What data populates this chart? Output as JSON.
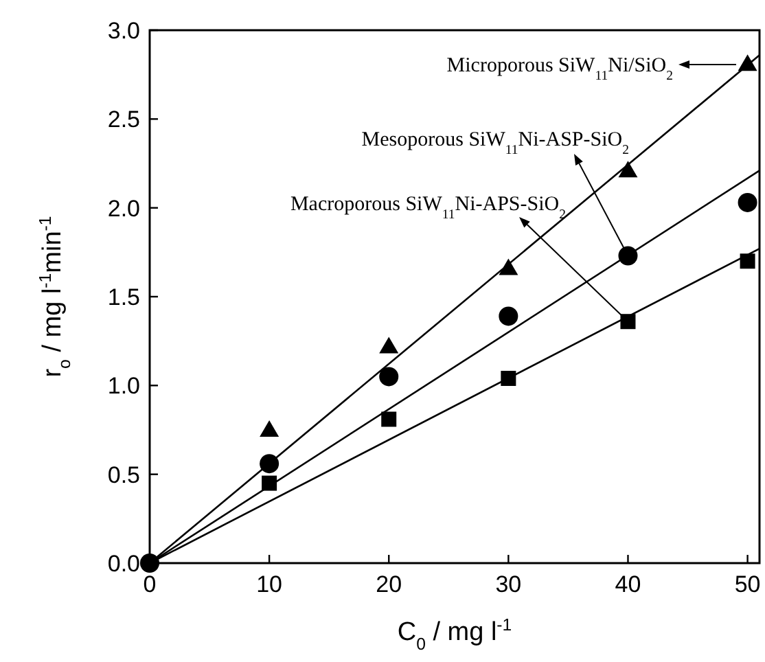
{
  "chart_data": {
    "type": "scatter",
    "xlabel": "C$_{0}$ / mg l$^{-1}$",
    "ylabel": "r$_{o}$ / mg l$^{-1}$min$^{-1}$",
    "xlim": [
      0,
      51
    ],
    "ylim": [
      0,
      3
    ],
    "xticks": [
      0,
      10,
      20,
      30,
      40,
      50
    ],
    "yticks": [
      {
        "value": 0,
        "label": "0.0"
      },
      {
        "value": 0.5,
        "label": "0.5"
      },
      {
        "value": 1,
        "label": "1.0"
      },
      {
        "value": 1.5,
        "label": "1.5"
      },
      {
        "value": 2,
        "label": "2.0"
      },
      {
        "value": 2.5,
        "label": "2.5"
      },
      {
        "value": 3,
        "label": "3.0"
      }
    ],
    "grid": false,
    "series": [
      {
        "type": "line",
        "marker": "none",
        "line_style": "solid",
        "color": "#000000",
        "x": [
          0,
          51
        ],
        "values": [
          0,
          2.86
        ]
      },
      {
        "type": "line",
        "marker": "none",
        "line_style": "solid",
        "color": "#000000",
        "x": [
          0,
          51
        ],
        "values": [
          0,
          2.21
        ]
      },
      {
        "type": "line",
        "marker": "none",
        "line_style": "solid",
        "color": "#000000",
        "x": [
          0,
          51
        ],
        "values": [
          0,
          1.77
        ]
      },
      {
        "marker": "triangle",
        "color": "#000000",
        "x": [
          10,
          20,
          30,
          40,
          50
        ],
        "values": [
          0.75,
          1.22,
          1.66,
          2.21,
          2.81
        ]
      },
      {
        "marker": "circle",
        "color": "#000000",
        "x": [
          0,
          10,
          20,
          30,
          40,
          50
        ],
        "values": [
          0,
          0.56,
          1.05,
          1.39,
          1.73,
          2.03
        ]
      },
      {
        "marker": "square",
        "color": "#000000",
        "x": [
          10,
          20,
          30,
          40,
          50
        ],
        "values": [
          0.45,
          0.81,
          1.04,
          1.36,
          1.7
        ]
      }
    ],
    "annotations": [
      "Microporous SiW$_{11}$Ni/SiO$_{2}$",
      {
        "text": "Mesoporous SiW$_{11}$Ni-ASP-SiO$_{2}$",
        "x": 40,
        "y": 1.73
      },
      {
        "text": "Macroporous SiW$_{11}$Ni-APS-SiO$_{2}$",
        "x": 40,
        "y": 1.36
      }
    ]
  }
}
